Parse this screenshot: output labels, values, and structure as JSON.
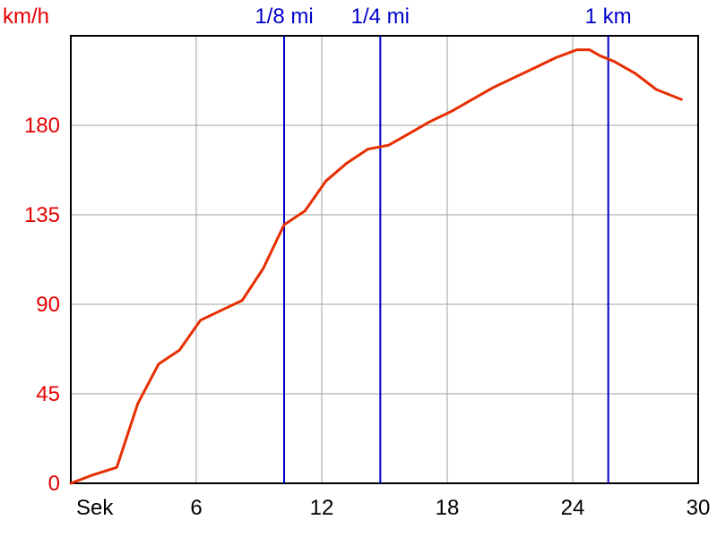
{
  "chart_data": {
    "type": "line",
    "title": "",
    "xlabel": "Sek",
    "ylabel": "km/h",
    "xlim": [
      0,
      30
    ],
    "ylim": [
      0,
      225
    ],
    "xticks": [
      6,
      12,
      18,
      24,
      30
    ],
    "yticks": [
      0,
      45,
      90,
      135,
      180
    ],
    "grid": true,
    "series": [
      {
        "color": "#e62e00",
        "x": [
          0,
          1.0,
          2.2,
          3.2,
          4.2,
          5.2,
          6.2,
          7.2,
          8.2,
          9.2,
          10.2,
          11.2,
          12.2,
          13.2,
          14.2,
          15.2,
          16.2,
          17.2,
          18.2,
          19.2,
          20.2,
          21.2,
          22.2,
          23.2,
          24.2,
          24.8,
          25.3,
          26.0,
          27.0,
          28.0,
          29.2
        ],
        "y": [
          0,
          4,
          8,
          40,
          60,
          67,
          82,
          87,
          92,
          108,
          130,
          137,
          152,
          161,
          168,
          170,
          176,
          182,
          187,
          193,
          199,
          204,
          209,
          214,
          218,
          218,
          215,
          212,
          206,
          198,
          193
        ]
      }
    ],
    "markers": [
      {
        "label": "1/8 mi",
        "x": 10.2,
        "color": "#0000cc"
      },
      {
        "label": "1/4 mi",
        "x": 14.8,
        "color": "#0000cc"
      },
      {
        "label": "1 km",
        "x": 25.7,
        "color": "#0000cc"
      }
    ]
  }
}
